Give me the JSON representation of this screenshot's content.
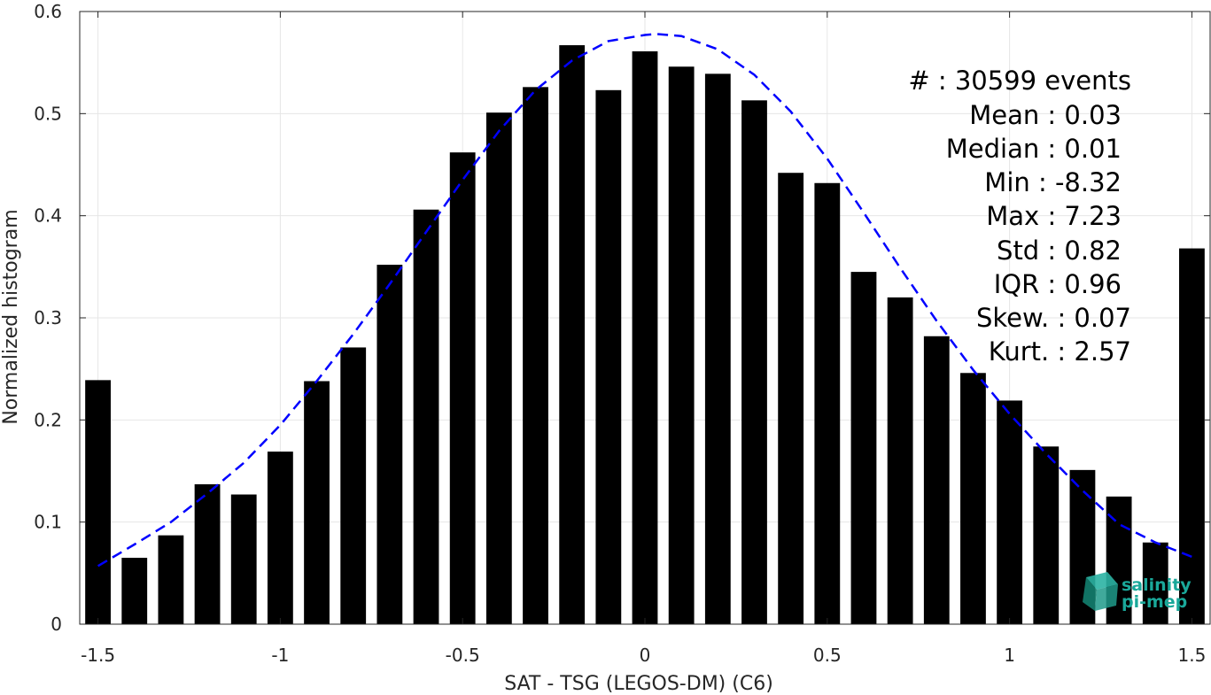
{
  "chart_data": {
    "type": "bar",
    "x": [
      -1.5,
      -1.4,
      -1.3,
      -1.2,
      -1.1,
      -1.0,
      -0.9,
      -0.8,
      -0.7,
      -0.6,
      -0.5,
      -0.4,
      -0.3,
      -0.2,
      -0.1,
      0.0,
      0.1,
      0.2,
      0.3,
      0.4,
      0.5,
      0.6,
      0.7,
      0.8,
      0.9,
      1.0,
      1.1,
      1.2,
      1.3,
      1.4,
      1.5
    ],
    "values": [
      0.239,
      0.065,
      0.087,
      0.137,
      0.127,
      0.169,
      0.238,
      0.271,
      0.352,
      0.406,
      0.462,
      0.501,
      0.526,
      0.567,
      0.523,
      0.561,
      0.546,
      0.539,
      0.513,
      0.442,
      0.432,
      0.345,
      0.32,
      0.282,
      0.246,
      0.219,
      0.174,
      0.151,
      0.125,
      0.08,
      0.368
    ],
    "fit": {
      "name": "",
      "x": [
        -1.5,
        -1.4,
        -1.3,
        -1.2,
        -1.1,
        -1.0,
        -0.9,
        -0.8,
        -0.7,
        -0.6,
        -0.5,
        -0.4,
        -0.3,
        -0.2,
        -0.1,
        0.0,
        0.03,
        0.1,
        0.2,
        0.3,
        0.4,
        0.5,
        0.6,
        0.7,
        0.8,
        0.9,
        1.0,
        1.1,
        1.2,
        1.3,
        1.4,
        1.5
      ],
      "y": [
        0.057,
        0.078,
        0.1,
        0.128,
        0.158,
        0.195,
        0.238,
        0.284,
        0.333,
        0.384,
        0.435,
        0.483,
        0.523,
        0.552,
        0.571,
        0.577,
        0.578,
        0.576,
        0.563,
        0.538,
        0.502,
        0.456,
        0.403,
        0.349,
        0.297,
        0.249,
        0.206,
        0.167,
        0.131,
        0.098,
        0.08,
        0.066
      ],
      "color": "#0000ff"
    },
    "xlim": [
      -1.55,
      1.55
    ],
    "ylim": [
      0,
      0.6
    ],
    "xticks": [
      -1.5,
      -1,
      -0.5,
      0,
      0.5,
      1,
      1.5
    ],
    "xtick_labels": [
      "-1.5",
      "-1",
      "-0.5",
      "0",
      "0.5",
      "1",
      "1.5"
    ],
    "yticks": [
      0,
      0.1,
      0.2,
      0.3,
      0.4,
      0.5,
      0.6
    ],
    "ytick_labels": [
      "0",
      "0.1",
      "0.2",
      "0.3",
      "0.4",
      "0.5",
      "0.6"
    ],
    "xlabel": "SAT - TSG (LEGOS-DM) (C6)",
    "ylabel": "Normalized histogram",
    "grid": true,
    "bar_color": "#000000",
    "annotations": [
      "#  : 30599 events",
      "Mean : 0.03",
      "Median : 0.01",
      "Min : -8.32",
      "Max : 7.23",
      "Std : 0.82",
      "IQR : 0.96",
      "Skew. : 0.07",
      "Kurt. : 2.57"
    ]
  },
  "logo": {
    "line1": "salinity",
    "line2": "pi-mep",
    "color": "#1aa89a"
  }
}
